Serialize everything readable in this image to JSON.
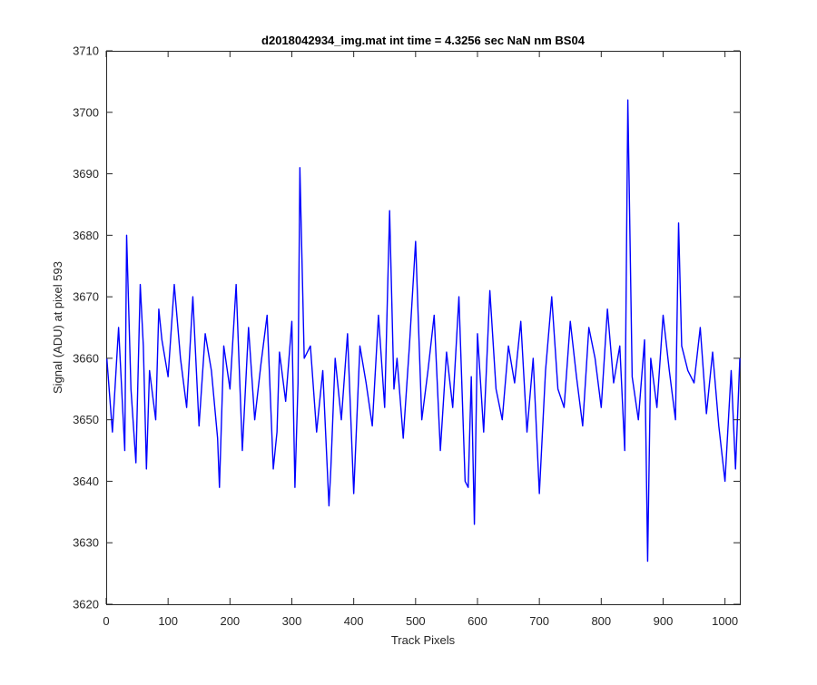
{
  "colors": {
    "line": "#0000FF",
    "axis": "#262626",
    "background": "#FFFFFF"
  },
  "chart_data": {
    "type": "line",
    "title": "d2018042934_img.mat int time = 4.3256 sec  NaN nm BS04",
    "xlabel": "Track Pixels",
    "ylabel": "Signal (ADU) at pixel 593",
    "xlim": [
      0,
      1024
    ],
    "ylim": [
      3620,
      3710
    ],
    "xticks": [
      0,
      100,
      200,
      300,
      400,
      500,
      600,
      700,
      800,
      900,
      1000
    ],
    "yticks": [
      3620,
      3630,
      3640,
      3650,
      3660,
      3670,
      3680,
      3690,
      3700,
      3710
    ],
    "grid": false,
    "legend": "none",
    "series": [
      {
        "x": [
          1,
          10,
          20,
          30,
          33,
          40,
          48,
          55,
          60,
          65,
          70,
          80,
          85,
          90,
          100,
          110,
          120,
          130,
          140,
          150,
          160,
          170,
          180,
          183,
          190,
          200,
          210,
          220,
          230,
          240,
          250,
          260,
          270,
          276,
          280,
          290,
          300,
          305,
          310,
          313,
          320,
          330,
          340,
          350,
          360,
          363,
          370,
          380,
          390,
          400,
          410,
          420,
          430,
          440,
          450,
          458,
          465,
          470,
          480,
          490,
          500,
          510,
          520,
          530,
          540,
          550,
          560,
          570,
          580,
          585,
          590,
          595,
          600,
          610,
          620,
          630,
          640,
          650,
          660,
          670,
          680,
          690,
          700,
          710,
          720,
          730,
          740,
          750,
          760,
          770,
          780,
          790,
          800,
          810,
          820,
          830,
          838,
          843,
          850,
          860,
          870,
          875,
          880,
          890,
          900,
          910,
          920,
          925,
          930,
          940,
          950,
          960,
          970,
          980,
          990,
          1000,
          1010,
          1017,
          1024
        ],
        "y": [
          3660,
          3648,
          3665,
          3645,
          3680,
          3655,
          3643,
          3672,
          3662,
          3642,
          3658,
          3650,
          3668,
          3663,
          3657,
          3672,
          3660,
          3652,
          3670,
          3649,
          3664,
          3658,
          3647,
          3639,
          3662,
          3655,
          3672,
          3645,
          3665,
          3650,
          3659,
          3667,
          3642,
          3648,
          3661,
          3653,
          3666,
          3639,
          3656,
          3691,
          3660,
          3662,
          3648,
          3658,
          3636,
          3642,
          3660,
          3650,
          3664,
          3638,
          3662,
          3656,
          3649,
          3667,
          3652,
          3684,
          3655,
          3660,
          3647,
          3662,
          3679,
          3650,
          3658,
          3667,
          3645,
          3661,
          3652,
          3670,
          3640,
          3639,
          3657,
          3633,
          3664,
          3648,
          3671,
          3655,
          3650,
          3662,
          3656,
          3666,
          3648,
          3660,
          3638,
          3658,
          3670,
          3655,
          3652,
          3666,
          3657,
          3649,
          3665,
          3660,
          3652,
          3668,
          3656,
          3662,
          3645,
          3702,
          3657,
          3650,
          3663,
          3627,
          3660,
          3652,
          3667,
          3658,
          3650,
          3682,
          3662,
          3658,
          3656,
          3665,
          3651,
          3661,
          3649,
          3640,
          3658,
          3642,
          3660
        ]
      }
    ]
  }
}
